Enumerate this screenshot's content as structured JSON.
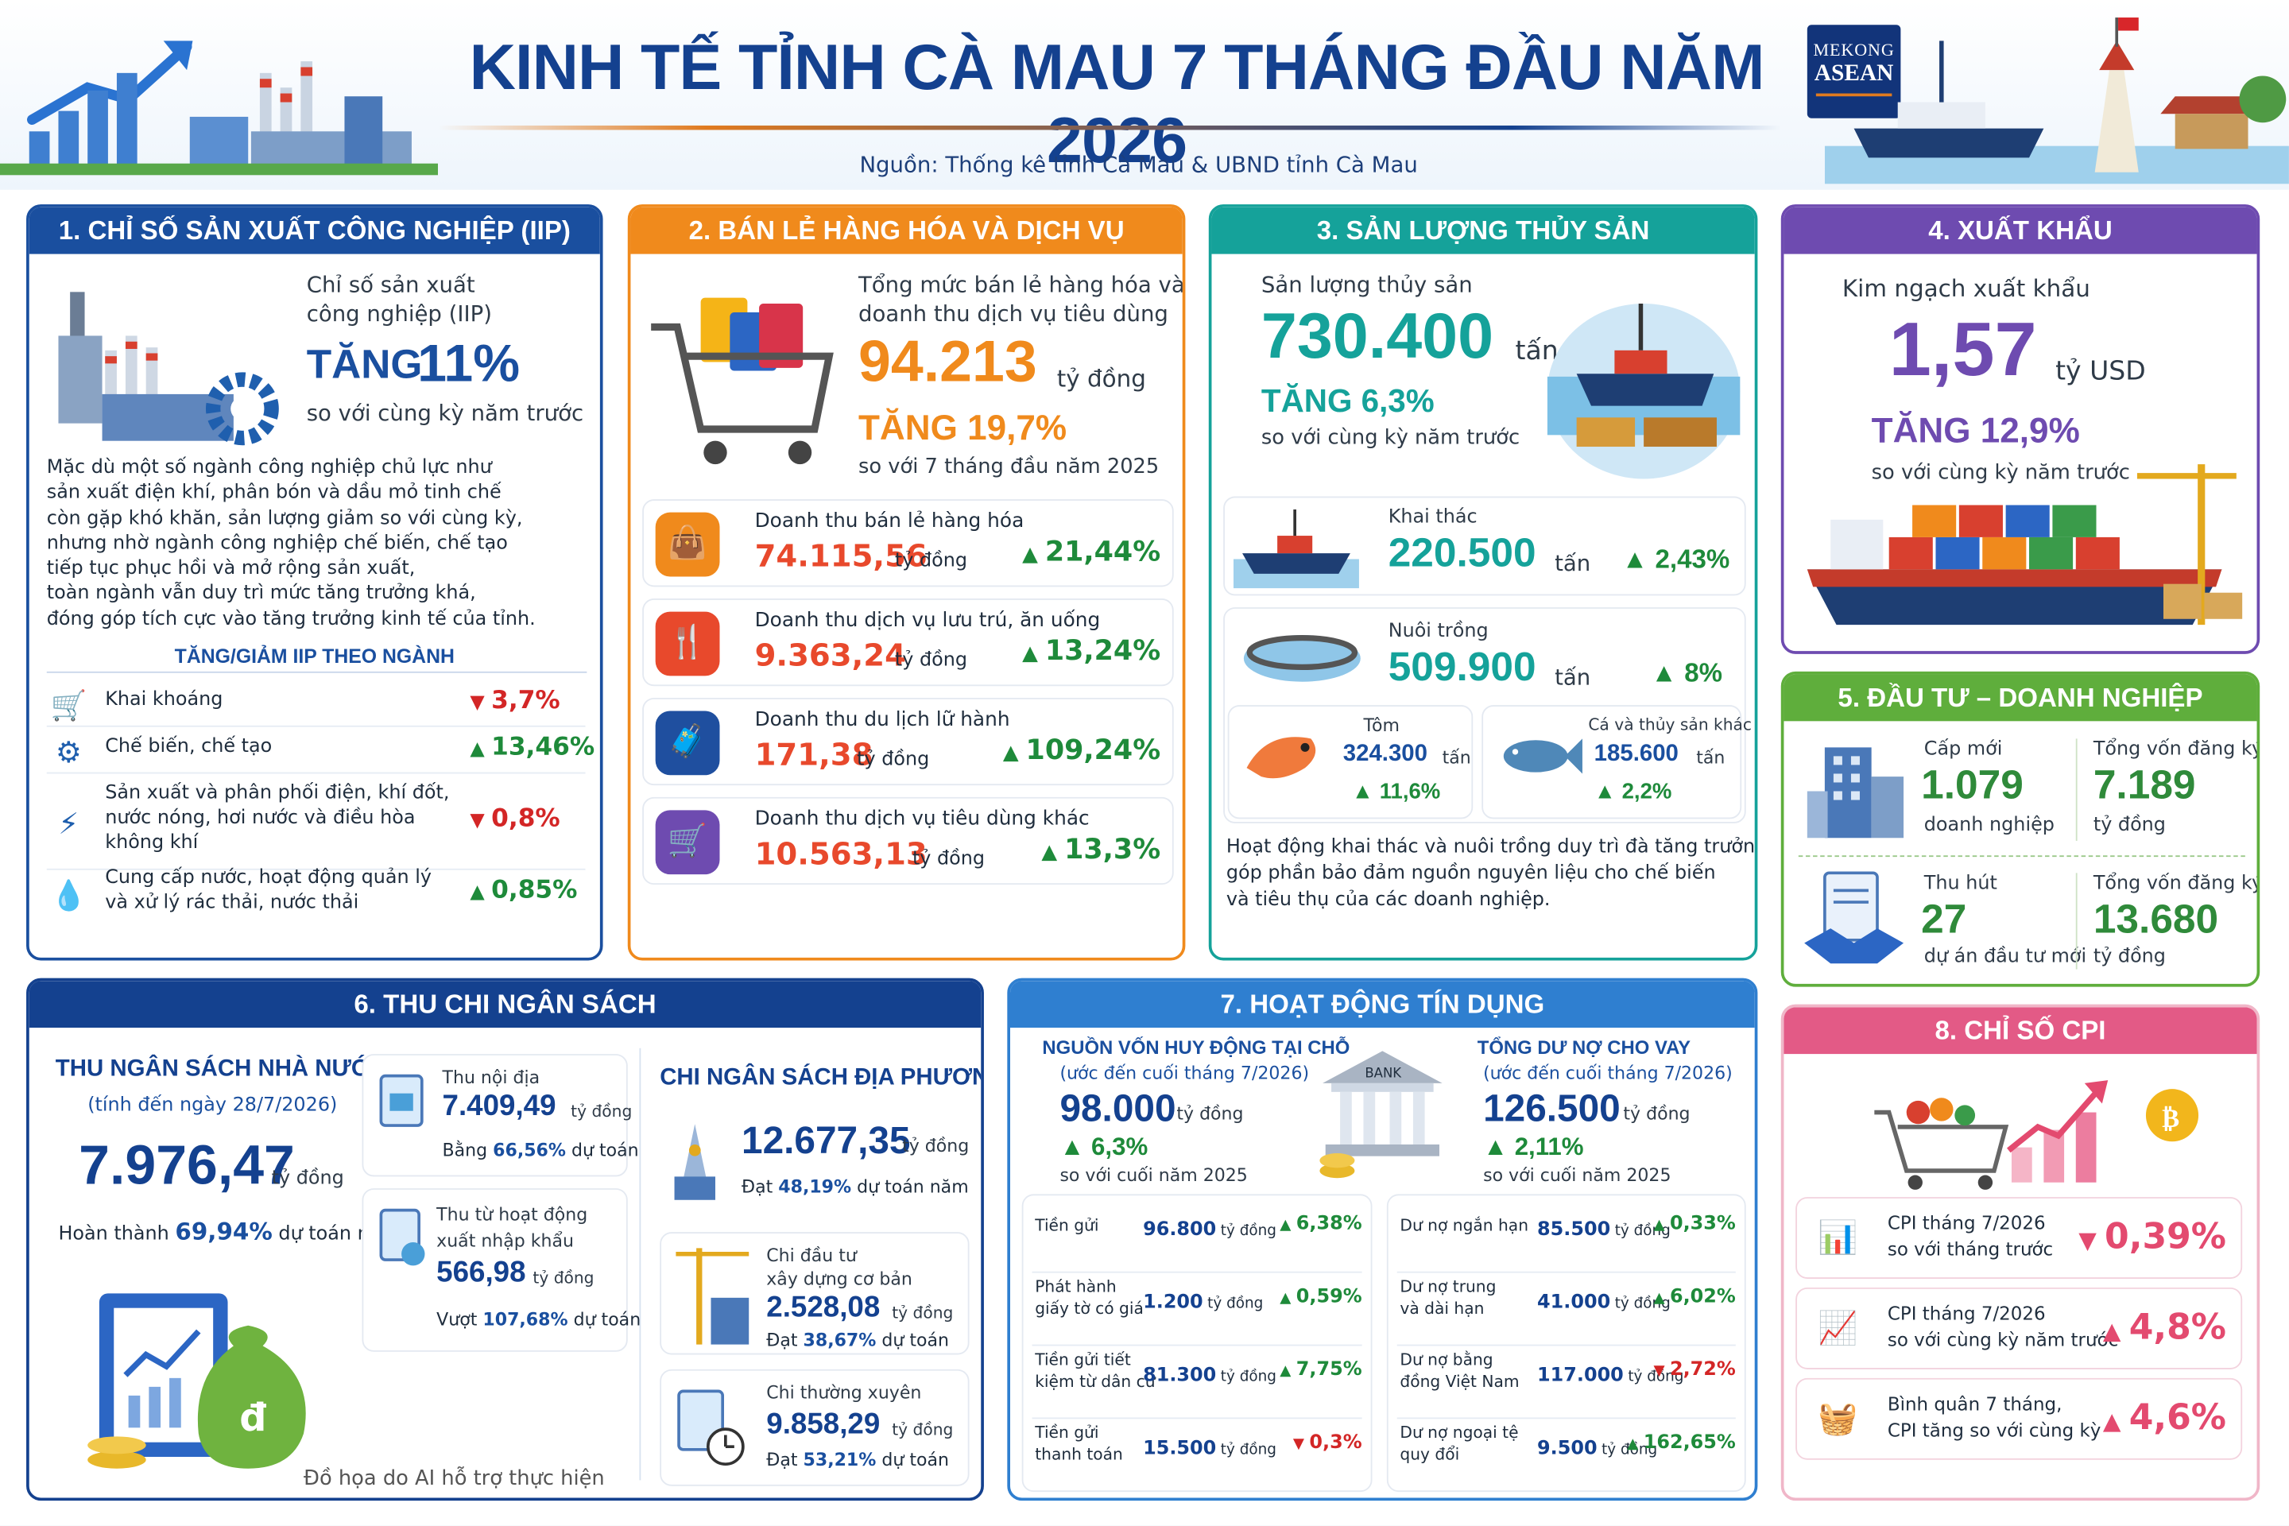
{
  "header": {
    "title": "KINH TẾ TỈNH CÀ MAU 7 THÁNG ĐẦU NĂM 2026",
    "source": "Nguồn: Thống kê tỉnh Cà Mau & UBND tỉnh Cà Mau",
    "logo_top": "MEKONG",
    "logo_bottom": "ASEAN"
  },
  "colors": {
    "iip": "#1a4f9f",
    "retail": "#f08a1c",
    "fish": "#15a29a",
    "export": "#6e4bb0",
    "invest": "#5fae3c",
    "budget": "#14418f",
    "credit": "#2f7fd0",
    "cpi": "#e35a86"
  },
  "iip": {
    "title": "1. CHỈ SỐ SẢN XUẤT CÔNG NGHIỆP (IIP)",
    "label1": "Chỉ số sản xuất",
    "label2": "công nghiệp (IIP)",
    "increase_word": "TĂNG",
    "increase_value": "11%",
    "compare": "so với cùng kỳ năm trước",
    "paragraph": [
      "Mặc dù một số ngành công nghiệp chủ lực như",
      "sản xuất điện khí, phân bón và dầu mỏ tinh chế",
      "còn gặp khó khăn, sản lượng giảm so với cùng kỳ,",
      "nhưng nhờ ngành công nghiệp chế biến, chế tạo",
      "tiếp tục phục hồi và mở rộng sản xuất,",
      "toàn ngành vẫn duy trì mức tăng trưởng khá,",
      "đóng góp tích cực vào tăng trưởng kinh tế của tỉnh."
    ],
    "sub_title": "TĂNG/GIẢM IIP THEO NGÀNH",
    "sectors": [
      {
        "icon": "mining-cart-icon",
        "name": [
          "Khai khoáng"
        ],
        "dir": "down",
        "value": "3,7%"
      },
      {
        "icon": "gear-icon",
        "name": [
          "Chế biến, chế tạo"
        ],
        "dir": "up",
        "value": "13,46%"
      },
      {
        "icon": "lightning-icon",
        "name": [
          "Sản xuất và phân phối điện, khí đốt,",
          "nước nóng, hơi nước và điều hòa",
          "không khí"
        ],
        "dir": "down",
        "value": "0,8%"
      },
      {
        "icon": "water-drop-icon",
        "name": [
          "Cung cấp nước, hoạt động quản lý",
          "và xử lý rác thải, nước thải"
        ],
        "dir": "up",
        "value": "0,85%"
      }
    ]
  },
  "retail": {
    "title": "2. BÁN LẺ HÀNG HÓA VÀ DỊCH VỤ",
    "label1": "Tổng mức bán lẻ hàng hóa và",
    "label2": "doanh thu dịch vụ tiêu dùng",
    "value": "94.213",
    "unit": "tỷ đồng",
    "increase": "TĂNG 19,7%",
    "compare": "so với 7 tháng đầu năm 2025",
    "items": [
      {
        "icon": "shopping-bag-icon",
        "color": "#f08a1c",
        "label": "Doanh thu bán lẻ hàng hóa",
        "value": "74.115,56",
        "unit": "tỷ đồng",
        "change": "21,44%"
      },
      {
        "icon": "fork-knife-icon",
        "color": "#e8492c",
        "label": "Doanh thu dịch vụ lưu trú, ăn uống",
        "value": "9.363,24",
        "unit": "tỷ đồng",
        "change": "13,24%"
      },
      {
        "icon": "suitcase-icon",
        "color": "#1f4f9f",
        "label": "Doanh thu du lịch lữ hành",
        "value": "171,38",
        "unit": "tỷ đồng",
        "change": "109,24%"
      },
      {
        "icon": "cart-icon",
        "color": "#6e4bb0",
        "label": "Doanh thu dịch vụ tiêu dùng khác",
        "value": "10.563,13",
        "unit": "tỷ đồng",
        "change": "13,3%"
      }
    ]
  },
  "fish": {
    "title": "3. SẢN LƯỢNG THỦY SẢN",
    "label": "Sản lượng thủy sản",
    "value": "730.400",
    "unit": "tấn",
    "increase": "TĂNG 6,3%",
    "compare": "so với cùng kỳ năm trước",
    "catch": {
      "label": "Khai thác",
      "value": "220.500",
      "unit": "tấn",
      "change": "2,43%"
    },
    "farm": {
      "label": "Nuôi trồng",
      "value": "509.900",
      "unit": "tấn",
      "change": "8%"
    },
    "shrimp": {
      "label": "Tôm",
      "value": "324.300",
      "unit": "tấn",
      "change": "11,6%"
    },
    "other": {
      "label": "Cá và thủy sản khác",
      "value": "185.600",
      "unit": "tấn",
      "change": "2,2%"
    },
    "note": [
      "Hoạt động khai thác và nuôi trồng duy trì đà tăng trưởng,",
      "góp phần bảo đảm nguồn nguyên liệu cho chế biến",
      "và tiêu thụ của các doanh nghiệp."
    ]
  },
  "export": {
    "title": "4. XUẤT KHẨU",
    "label": "Kim ngạch xuất khẩu",
    "value": "1,57",
    "unit": "tỷ USD",
    "increase": "TĂNG 12,9%",
    "compare": "so với cùng kỳ năm trước"
  },
  "invest": {
    "title": "5. ĐẦU TƯ – DOANH NGHIỆP",
    "new_label": "Cấp mới",
    "new_value": "1.079",
    "new_unit": "doanh nghiệp",
    "cap1_label": "Tổng vốn đăng ký",
    "cap1_value": "7.189",
    "cap1_unit": "tỷ đồng",
    "attract_label": "Thu hút",
    "attract_value": "27",
    "attract_unit": "dự án đầu tư mới",
    "cap2_label": "Tổng vốn đăng ký",
    "cap2_value": "13.680",
    "cap2_unit": "tỷ đồng"
  },
  "budget": {
    "title": "6. THU CHI NGÂN SÁCH",
    "rev_title": "THU NGÂN SÁCH NHÀ NƯỚC",
    "rev_date": "(tính đến ngày 28/7/2026)",
    "rev_value": "7.976,47",
    "rev_unit": "tỷ đồng",
    "rev_done_label": "Hoàn thành",
    "rev_done_value": "69,94%",
    "rev_done_suffix": "dự toán năm",
    "dom_label": "Thu nội địa",
    "dom_value": "7.409,49",
    "dom_unit": "tỷ đồng",
    "dom_pct_label": "Bằng",
    "dom_pct": "66,56%",
    "dom_pct_suffix": "dự toán",
    "trade_label1": "Thu từ hoạt động",
    "trade_label2": "xuất nhập khẩu",
    "trade_value": "566,98",
    "trade_unit": "tỷ đồng",
    "trade_pct_label": "Vượt",
    "trade_pct": "107,68%",
    "trade_pct_suffix": "dự toán",
    "exp_title": "CHI NGÂN SÁCH ĐỊA PHƯƠNG",
    "exp_value": "12.677,35",
    "exp_unit": "tỷ đồng",
    "exp_pct_label": "Đạt",
    "exp_pct": "48,19%",
    "exp_pct_suffix": "dự toán năm",
    "capex_label1": "Chi đầu tư",
    "capex_label2": "xây dựng cơ bản",
    "capex_value": "2.528,08",
    "capex_unit": "tỷ đồng",
    "capex_pct_label": "Đạt",
    "capex_pct": "38,67%",
    "capex_pct_suffix": "dự toán",
    "reg_label": "Chi thường xuyên",
    "reg_value": "9.858,29",
    "reg_unit": "tỷ đồng",
    "reg_pct_label": "Đạt",
    "reg_pct": "53,21%",
    "reg_pct_suffix": "dự toán"
  },
  "credit": {
    "title": "7. HOẠT ĐỘNG TÍN DỤNG",
    "dep_title": "NGUỒN VỐN HUY ĐỘNG TẠI CHỖ",
    "dep_sub": "(ước đến cuối tháng 7/2026)",
    "dep_value": "98.000",
    "dep_unit": "tỷ đồng",
    "dep_change": "6,3%",
    "dep_compare": "so với cuối năm 2025",
    "loan_title": "TỔNG DƯ NỢ CHO VAY",
    "loan_sub": "(ước đến cuối tháng 7/2026)",
    "loan_value": "126.500",
    "loan_unit": "tỷ đồng",
    "loan_change": "2,11%",
    "loan_compare": "so với cuối năm 2025",
    "bank_label": "BANK",
    "left_rows": [
      {
        "label": [
          "Tiền gửi"
        ],
        "value": "96.800",
        "unit": "tỷ đồng",
        "dir": "up",
        "change": "6,38%"
      },
      {
        "label": [
          "Phát hành",
          "giấy tờ có giá"
        ],
        "value": "1.200",
        "unit": "tỷ đồng",
        "dir": "up",
        "change": "0,59%"
      },
      {
        "label": [
          "Tiền gửi tiết",
          "kiệm từ dân cư"
        ],
        "value": "81.300",
        "unit": "tỷ đồng",
        "dir": "up",
        "change": "7,75%"
      },
      {
        "label": [
          "Tiền gửi",
          "thanh toán"
        ],
        "value": "15.500",
        "unit": "tỷ đồng",
        "dir": "down",
        "change": "0,3%"
      }
    ],
    "right_rows": [
      {
        "label": [
          "Dư nợ ngắn hạn"
        ],
        "value": "85.500",
        "unit": "tỷ đồng",
        "dir": "up",
        "change": "0,33%"
      },
      {
        "label": [
          "Dư nợ trung",
          "và dài hạn"
        ],
        "value": "41.000",
        "unit": "tỷ đồng",
        "dir": "up",
        "change": "6,02%"
      },
      {
        "label": [
          "Dư nợ bằng",
          "đồng Việt Nam"
        ],
        "value": "117.000",
        "unit": "tỷ đồng",
        "dir": "down",
        "change": "2,72%"
      },
      {
        "label": [
          "Dư nợ ngoại tệ",
          "quy đổi"
        ],
        "value": "9.500",
        "unit": "tỷ đồng",
        "dir": "up",
        "change": "162,65%"
      }
    ]
  },
  "cpi": {
    "title": "8. CHỈ SỐ CPI",
    "rows": [
      {
        "icon": "bar-chart-icon",
        "label": [
          "CPI tháng 7/2026",
          "so với tháng trước"
        ],
        "dir": "down",
        "value": "0,39%"
      },
      {
        "icon": "line-chart-icon",
        "label": [
          "CPI tháng 7/2026",
          "so với cùng kỳ năm trước"
        ],
        "dir": "up",
        "value": "4,8%"
      },
      {
        "icon": "basket-icon",
        "label": [
          "Bình quân 7 tháng,",
          "CPI tăng so với cùng kỳ"
        ],
        "dir": "up",
        "value": "4,6%"
      }
    ]
  },
  "footnote": "Đồ họa do AI hỗ trợ thực hiện"
}
